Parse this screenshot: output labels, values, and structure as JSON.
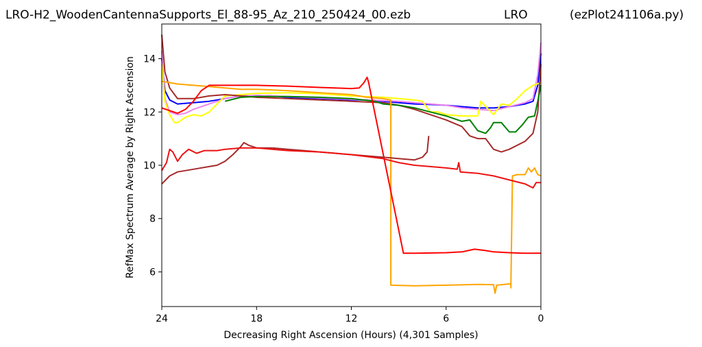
{
  "header": {
    "filename": "LRO-H2_WoodenCantennaSupports_El_88-95_Az_210_250424_00.ezb",
    "station": "LRO",
    "script": "(ezPlot241106a.py)"
  },
  "chart_data": {
    "type": "line",
    "xlabel": "Decreasing Right Ascension (Hours) (4,301 Samples)",
    "ylabel": "RefMax Spectrum Average by Right Ascension",
    "xlim": [
      24,
      0
    ],
    "ylim": [
      4.7,
      15.3
    ],
    "xticks": [
      "24",
      "18",
      "12",
      "6",
      "0"
    ],
    "xtick_values": [
      24,
      18,
      12,
      6,
      0
    ],
    "yticks": [
      "6",
      "8",
      "10",
      "12",
      "14"
    ],
    "ytick_values": [
      6,
      8,
      10,
      12,
      14
    ],
    "grid": false,
    "series": [
      {
        "color": "#0000ff",
        "points": [
          [
            24,
            14.0
          ],
          [
            23.8,
            12.8
          ],
          [
            23.5,
            12.45
          ],
          [
            23,
            12.3
          ],
          [
            22,
            12.35
          ],
          [
            21,
            12.4
          ],
          [
            20,
            12.5
          ],
          [
            19,
            12.6
          ],
          [
            18,
            12.62
          ],
          [
            17,
            12.6
          ],
          [
            16,
            12.55
          ],
          [
            15,
            12.52
          ],
          [
            14,
            12.5
          ],
          [
            13,
            12.48
          ],
          [
            12,
            12.45
          ],
          [
            11,
            12.45
          ],
          [
            10,
            12.4
          ],
          [
            9,
            12.35
          ],
          [
            8,
            12.3
          ],
          [
            7,
            12.28
          ],
          [
            6,
            12.25
          ],
          [
            5,
            12.2
          ],
          [
            4,
            12.15
          ],
          [
            3,
            12.15
          ],
          [
            2,
            12.2
          ],
          [
            1,
            12.3
          ],
          [
            0.5,
            12.4
          ],
          [
            0.2,
            13.0
          ],
          [
            0,
            14.2
          ]
        ]
      },
      {
        "color": "#ee82ee",
        "points": [
          [
            24,
            14.3
          ],
          [
            23.8,
            12.5
          ],
          [
            23.5,
            12.0
          ],
          [
            23,
            11.9
          ],
          [
            22.5,
            11.95
          ],
          [
            22,
            12.1
          ],
          [
            21,
            12.3
          ],
          [
            20,
            12.5
          ],
          [
            19,
            12.6
          ],
          [
            18,
            12.62
          ],
          [
            17,
            12.6
          ],
          [
            15,
            12.55
          ],
          [
            13,
            12.5
          ],
          [
            11,
            12.45
          ],
          [
            9,
            12.4
          ],
          [
            7,
            12.3
          ],
          [
            6,
            12.25
          ],
          [
            5,
            12.15
          ],
          [
            4,
            12.1
          ],
          [
            3,
            12.05
          ],
          [
            2,
            12.2
          ],
          [
            1,
            12.35
          ],
          [
            0.5,
            12.5
          ],
          [
            0.2,
            13.4
          ],
          [
            0,
            14.6
          ]
        ]
      },
      {
        "color": "#ffff00",
        "points": [
          [
            24,
            13.8
          ],
          [
            23.8,
            12.4
          ],
          [
            23.5,
            11.9
          ],
          [
            23.2,
            11.6
          ],
          [
            23,
            11.6
          ],
          [
            22.5,
            11.8
          ],
          [
            22,
            11.9
          ],
          [
            21.5,
            11.85
          ],
          [
            21,
            12.0
          ],
          [
            20.5,
            12.3
          ],
          [
            20,
            12.6
          ],
          [
            19,
            12.65
          ],
          [
            18,
            12.7
          ],
          [
            16,
            12.72
          ],
          [
            14,
            12.68
          ],
          [
            12,
            12.6
          ],
          [
            10,
            12.55
          ],
          [
            9,
            12.5
          ],
          [
            8,
            12.45
          ],
          [
            7.5,
            12.4
          ],
          [
            7,
            12.0
          ],
          [
            6.5,
            12.0
          ],
          [
            6,
            11.9
          ],
          [
            5,
            11.85
          ],
          [
            4,
            11.85
          ],
          [
            3.8,
            12.4
          ],
          [
            3,
            11.9
          ],
          [
            2.5,
            12.3
          ],
          [
            2,
            12.25
          ],
          [
            1.5,
            12.5
          ],
          [
            1,
            12.8
          ],
          [
            0.5,
            13.0
          ],
          [
            0,
            13.1
          ]
        ]
      },
      {
        "color": "#a52a2a",
        "points": [
          [
            24,
            14.9
          ],
          [
            23.8,
            13.5
          ],
          [
            23.5,
            12.9
          ],
          [
            23,
            12.5
          ],
          [
            22,
            12.5
          ],
          [
            21.5,
            12.55
          ],
          [
            21,
            12.6
          ],
          [
            20,
            12.65
          ],
          [
            19,
            12.6
          ],
          [
            18,
            12.55
          ],
          [
            16,
            12.5
          ],
          [
            14,
            12.45
          ],
          [
            12,
            12.4
          ],
          [
            10,
            12.35
          ],
          [
            9,
            12.25
          ],
          [
            8,
            12.1
          ],
          [
            7,
            11.9
          ],
          [
            6,
            11.7
          ],
          [
            5,
            11.45
          ],
          [
            4.5,
            11.1
          ],
          [
            4,
            11.0
          ],
          [
            3.5,
            11.0
          ],
          [
            3,
            10.6
          ],
          [
            2.5,
            10.5
          ],
          [
            2,
            10.6
          ],
          [
            1,
            10.9
          ],
          [
            0.5,
            11.2
          ],
          [
            0.2,
            12.0
          ],
          [
            0,
            13.8
          ]
        ]
      },
      {
        "color": "#008000",
        "points": [
          [
            20,
            12.4
          ],
          [
            19,
            12.55
          ],
          [
            18,
            12.58
          ],
          [
            16,
            12.58
          ],
          [
            14,
            12.55
          ],
          [
            12,
            12.5
          ],
          [
            10.5,
            12.4
          ],
          [
            10,
            12.3
          ],
          [
            9,
            12.25
          ],
          [
            8,
            12.15
          ],
          [
            7,
            12.0
          ],
          [
            6,
            11.85
          ],
          [
            5,
            11.65
          ],
          [
            4.5,
            11.7
          ],
          [
            4,
            11.3
          ],
          [
            3.5,
            11.2
          ],
          [
            3.2,
            11.4
          ],
          [
            3,
            11.6
          ],
          [
            2.5,
            11.6
          ],
          [
            2,
            11.25
          ],
          [
            1.6,
            11.25
          ],
          [
            1.2,
            11.5
          ],
          [
            0.8,
            11.8
          ],
          [
            0.4,
            11.85
          ],
          [
            0.2,
            12.4
          ],
          [
            0,
            13.0
          ]
        ]
      },
      {
        "color": "#ffa500",
        "points": [
          [
            24,
            13.15
          ],
          [
            23.5,
            13.1
          ],
          [
            23,
            13.05
          ],
          [
            22,
            13.0
          ],
          [
            21,
            12.95
          ],
          [
            20,
            12.9
          ],
          [
            19,
            12.85
          ],
          [
            18,
            12.85
          ],
          [
            16,
            12.8
          ],
          [
            14,
            12.72
          ],
          [
            12,
            12.65
          ],
          [
            11,
            12.55
          ],
          [
            10,
            12.5
          ],
          [
            9.5,
            12.45
          ],
          [
            9.5,
            5.5
          ],
          [
            8,
            5.48
          ],
          [
            6,
            5.5
          ],
          [
            4,
            5.53
          ],
          [
            3,
            5.52
          ],
          [
            2.9,
            5.2
          ],
          [
            2.8,
            5.5
          ],
          [
            2,
            5.55
          ],
          [
            1.9,
            5.55
          ],
          [
            1.9,
            5.4
          ],
          [
            1.8,
            9.6
          ],
          [
            1.5,
            9.65
          ],
          [
            1,
            9.65
          ],
          [
            0.8,
            9.9
          ],
          [
            0.6,
            9.75
          ],
          [
            0.4,
            9.9
          ],
          [
            0.2,
            9.65
          ],
          [
            0,
            9.6
          ]
        ]
      },
      {
        "color": "#ff0000",
        "points": [
          [
            24,
            12.15
          ],
          [
            23.5,
            12.05
          ],
          [
            23,
            11.95
          ],
          [
            22.5,
            12.1
          ],
          [
            22,
            12.4
          ],
          [
            21.5,
            12.8
          ],
          [
            21,
            13.0
          ],
          [
            20,
            13.0
          ],
          [
            19,
            13.0
          ],
          [
            18,
            13.0
          ],
          [
            16,
            12.97
          ],
          [
            14,
            12.92
          ],
          [
            12,
            12.88
          ],
          [
            11.5,
            12.9
          ],
          [
            11.2,
            13.1
          ],
          [
            11.0,
            13.3
          ],
          [
            10.9,
            13.1
          ],
          [
            10.8,
            12.8
          ],
          [
            8.7,
            6.7
          ],
          [
            8,
            6.7
          ],
          [
            6,
            6.72
          ],
          [
            5,
            6.75
          ],
          [
            4.2,
            6.85
          ],
          [
            3.5,
            6.8
          ],
          [
            3,
            6.75
          ],
          [
            2,
            6.72
          ],
          [
            1,
            6.7
          ],
          [
            0,
            6.7
          ]
        ]
      },
      {
        "color": "#a52a2a",
        "points": [
          [
            24,
            9.3
          ],
          [
            23.5,
            9.6
          ],
          [
            23,
            9.75
          ],
          [
            22,
            9.85
          ],
          [
            21,
            9.95
          ],
          [
            20.5,
            10.0
          ],
          [
            20,
            10.15
          ],
          [
            19.5,
            10.4
          ],
          [
            19,
            10.7
          ],
          [
            18.8,
            10.85
          ],
          [
            18.5,
            10.75
          ],
          [
            18,
            10.65
          ],
          [
            17,
            10.65
          ],
          [
            16,
            10.6
          ],
          [
            15,
            10.55
          ],
          [
            14,
            10.5
          ],
          [
            13,
            10.45
          ],
          [
            12,
            10.4
          ],
          [
            11,
            10.35
          ],
          [
            10,
            10.3
          ],
          [
            9,
            10.25
          ],
          [
            8,
            10.2
          ],
          [
            7.5,
            10.3
          ],
          [
            7.2,
            10.5
          ],
          [
            7.1,
            11.1
          ]
        ]
      },
      {
        "color": "#ee1111",
        "points": [
          [
            24,
            9.8
          ],
          [
            23.7,
            10.1
          ],
          [
            23.5,
            10.6
          ],
          [
            23.3,
            10.5
          ],
          [
            23,
            10.15
          ],
          [
            22.7,
            10.4
          ],
          [
            22.3,
            10.6
          ],
          [
            21.8,
            10.45
          ],
          [
            21.3,
            10.55
          ],
          [
            20.5,
            10.55
          ],
          [
            20,
            10.6
          ],
          [
            19,
            10.65
          ],
          [
            18,
            10.65
          ],
          [
            17,
            10.6
          ],
          [
            16,
            10.55
          ],
          [
            14,
            10.5
          ],
          [
            12,
            10.4
          ],
          [
            10,
            10.25
          ],
          [
            9,
            10.1
          ],
          [
            8,
            10.0
          ],
          [
            7,
            9.95
          ],
          [
            6,
            9.9
          ],
          [
            5.3,
            9.85
          ],
          [
            5.2,
            10.1
          ],
          [
            5.1,
            9.75
          ],
          [
            4,
            9.7
          ],
          [
            3,
            9.6
          ],
          [
            2,
            9.45
          ],
          [
            1,
            9.3
          ],
          [
            0.5,
            9.15
          ],
          [
            0.3,
            9.35
          ],
          [
            0,
            9.35
          ]
        ]
      }
    ]
  }
}
